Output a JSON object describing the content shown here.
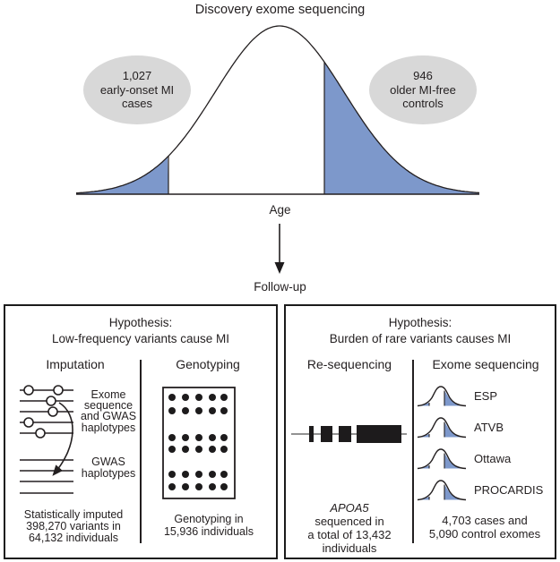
{
  "title": "Discovery exome sequencing",
  "distribution": {
    "xlabel": "Age",
    "left_group": {
      "lines": [
        "1,027",
        "early-onset MI",
        "cases"
      ]
    },
    "right_group": {
      "lines": [
        "946",
        "older MI-free",
        "controls"
      ]
    }
  },
  "arrow_label": "Follow-up",
  "left_box": {
    "hypothesis_line1": "Hypothesis:",
    "hypothesis_line2": "Low-frequency variants cause MI",
    "col1": {
      "header": "Imputation",
      "diagram_label_top": [
        "Exome",
        "sequence",
        "and GWAS",
        "haplotypes"
      ],
      "diagram_label_bottom": [
        "GWAS",
        "haplotypes"
      ],
      "caption": [
        "Statistically imputed",
        "398,270 variants in",
        "64,132 individuals"
      ]
    },
    "col2": {
      "header": "Genotyping",
      "caption": [
        "Genotyping in",
        "15,936 individuals"
      ]
    }
  },
  "right_box": {
    "hypothesis_line1": "Hypothesis:",
    "hypothesis_line2": "Burden of rare variants causes MI",
    "col1": {
      "header": "Re-sequencing",
      "gene": "APOA5",
      "caption": [
        "sequenced in",
        "a total of 13,432",
        "individuals"
      ]
    },
    "col2": {
      "header": "Exome sequencing",
      "studies": [
        {
          "label": "ESP"
        },
        {
          "label": "ATVB"
        },
        {
          "label": "Ottawa"
        },
        {
          "label": "PROCARDIS"
        }
      ],
      "caption": [
        "4,703 cases and",
        "5,090 control exomes"
      ]
    }
  },
  "colors": {
    "accent_blue": "#7d98cb",
    "ellipse_gray": "#d8d8d8",
    "ink": "#231f20"
  }
}
